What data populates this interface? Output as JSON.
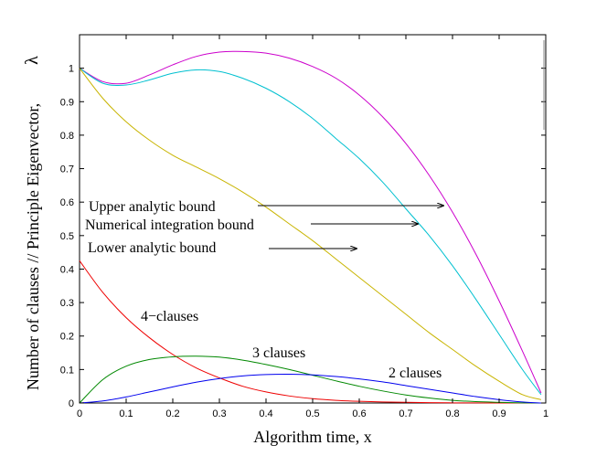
{
  "chart_data": {
    "type": "line",
    "title": "",
    "xlabel": "Algorithm time, x",
    "ylabel": "Number of clauses // Principle Eigenvector,",
    "ylabel_symbol": "λ",
    "xlim": [
      0,
      1
    ],
    "ylim": [
      0,
      1.1
    ],
    "xticks": [
      "0",
      "0.1",
      "0.2",
      "0.3",
      "0.4",
      "0.5",
      "0.6",
      "0.7",
      "0.8",
      "0.9",
      "1"
    ],
    "yticks": [
      "0",
      "0.1",
      "0.2",
      "0.3",
      "0.4",
      "0.5",
      "0.6",
      "0.7",
      "0.8",
      "0.9",
      "1"
    ],
    "grid": false,
    "x": [
      0,
      0.05,
      0.1,
      0.15,
      0.2,
      0.25,
      0.3,
      0.35,
      0.4,
      0.45,
      0.5,
      0.55,
      0.6,
      0.65,
      0.7,
      0.75,
      0.8,
      0.85,
      0.9,
      0.95,
      0.99
    ],
    "series": [
      {
        "key": "upper",
        "color": "#cc00cc",
        "values": [
          1.0,
          0.96,
          0.955,
          0.98,
          1.01,
          1.035,
          1.048,
          1.05,
          1.045,
          1.03,
          1.005,
          0.97,
          0.92,
          0.855,
          0.775,
          0.68,
          0.57,
          0.445,
          0.305,
          0.155,
          0.03
        ]
      },
      {
        "key": "numerical",
        "color": "#00c0d0",
        "values": [
          1.0,
          0.955,
          0.95,
          0.965,
          0.985,
          0.995,
          0.99,
          0.97,
          0.94,
          0.9,
          0.85,
          0.79,
          0.73,
          0.66,
          0.58,
          0.5,
          0.41,
          0.31,
          0.205,
          0.1,
          0.025
        ]
      },
      {
        "key": "lower",
        "color": "#c8b400",
        "values": [
          1.0,
          0.91,
          0.84,
          0.785,
          0.74,
          0.705,
          0.67,
          0.63,
          0.585,
          0.535,
          0.485,
          0.43,
          0.375,
          0.32,
          0.265,
          0.21,
          0.16,
          0.11,
          0.065,
          0.025,
          0.01
        ]
      },
      {
        "key": "clauses4",
        "color": "#ee0000",
        "values": [
          0.425,
          0.33,
          0.255,
          0.195,
          0.145,
          0.105,
          0.075,
          0.05,
          0.033,
          0.021,
          0.013,
          0.008,
          0.005,
          0.003,
          0.002,
          0.001,
          0.0005,
          0.0002,
          0.0001,
          0.0,
          0.0
        ]
      },
      {
        "key": "clauses3",
        "color": "#008800",
        "values": [
          0.0,
          0.07,
          0.11,
          0.13,
          0.138,
          0.14,
          0.137,
          0.128,
          0.115,
          0.1,
          0.083,
          0.066,
          0.05,
          0.036,
          0.024,
          0.015,
          0.008,
          0.004,
          0.002,
          0.0005,
          0.0
        ]
      },
      {
        "key": "clauses2",
        "color": "#0000ee",
        "values": [
          0.0,
          0.006,
          0.018,
          0.033,
          0.048,
          0.062,
          0.073,
          0.081,
          0.085,
          0.086,
          0.084,
          0.079,
          0.072,
          0.063,
          0.052,
          0.041,
          0.03,
          0.019,
          0.01,
          0.003,
          0.0
        ]
      }
    ],
    "annotations": [
      {
        "text": "Upper analytic bound",
        "arrow_to": [
          0.785,
          0.59
        ]
      },
      {
        "text": "Numerical integration bound",
        "arrow_to": [
          0.735,
          0.535
        ]
      },
      {
        "text": "Lower analytic bound",
        "arrow_to": [
          0.595,
          0.46
        ]
      },
      {
        "text": "4−clauses"
      },
      {
        "text": "3 clauses"
      },
      {
        "text": "2 clauses"
      }
    ]
  }
}
